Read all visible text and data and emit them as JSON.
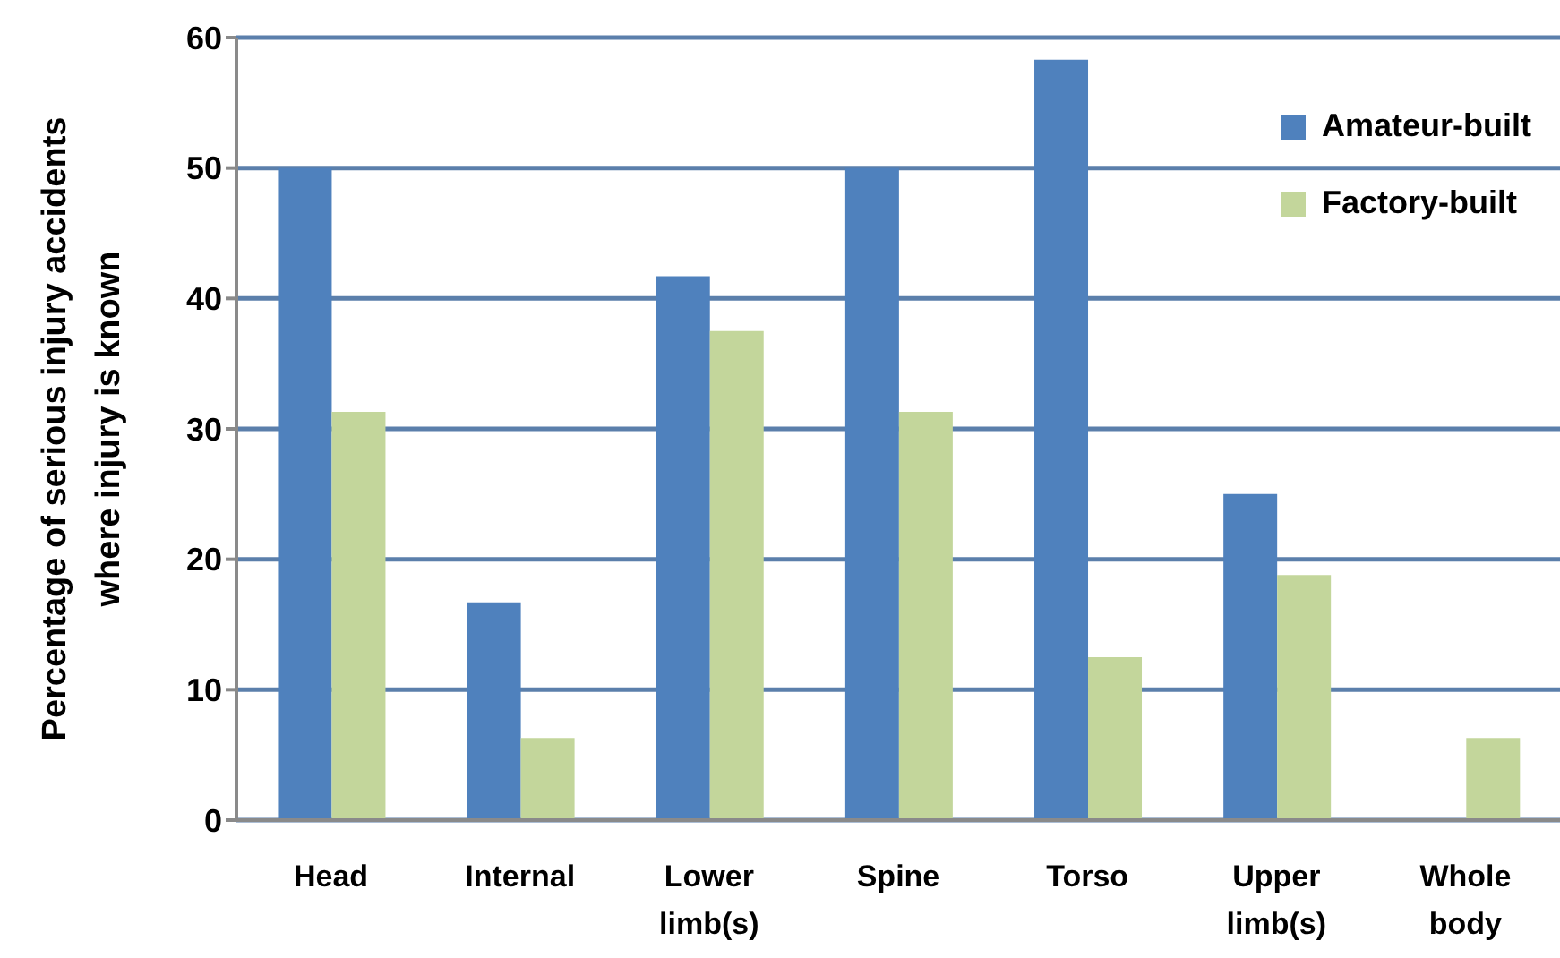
{
  "chart_data": {
    "type": "bar",
    "ylabel": "Percentage of serious injury accidents where injury is known",
    "categories": [
      "Head",
      "Internal",
      "Lower limb(s)",
      "Spine",
      "Torso",
      "Upper limb(s)",
      "Whole body"
    ],
    "series": [
      {
        "name": "Amateur-built",
        "color": "#4f81bd",
        "values": [
          50,
          16.7,
          41.7,
          50,
          58.3,
          25,
          0
        ]
      },
      {
        "name": "Factory-built",
        "color": "#c3d69b",
        "values": [
          31.3,
          6.3,
          37.5,
          31.3,
          12.5,
          18.8,
          6.3
        ]
      }
    ],
    "ylim": [
      0,
      60
    ],
    "yticks": [
      0,
      10,
      20,
      30,
      40,
      50,
      60
    ],
    "grid": "y",
    "legend": "top right"
  }
}
